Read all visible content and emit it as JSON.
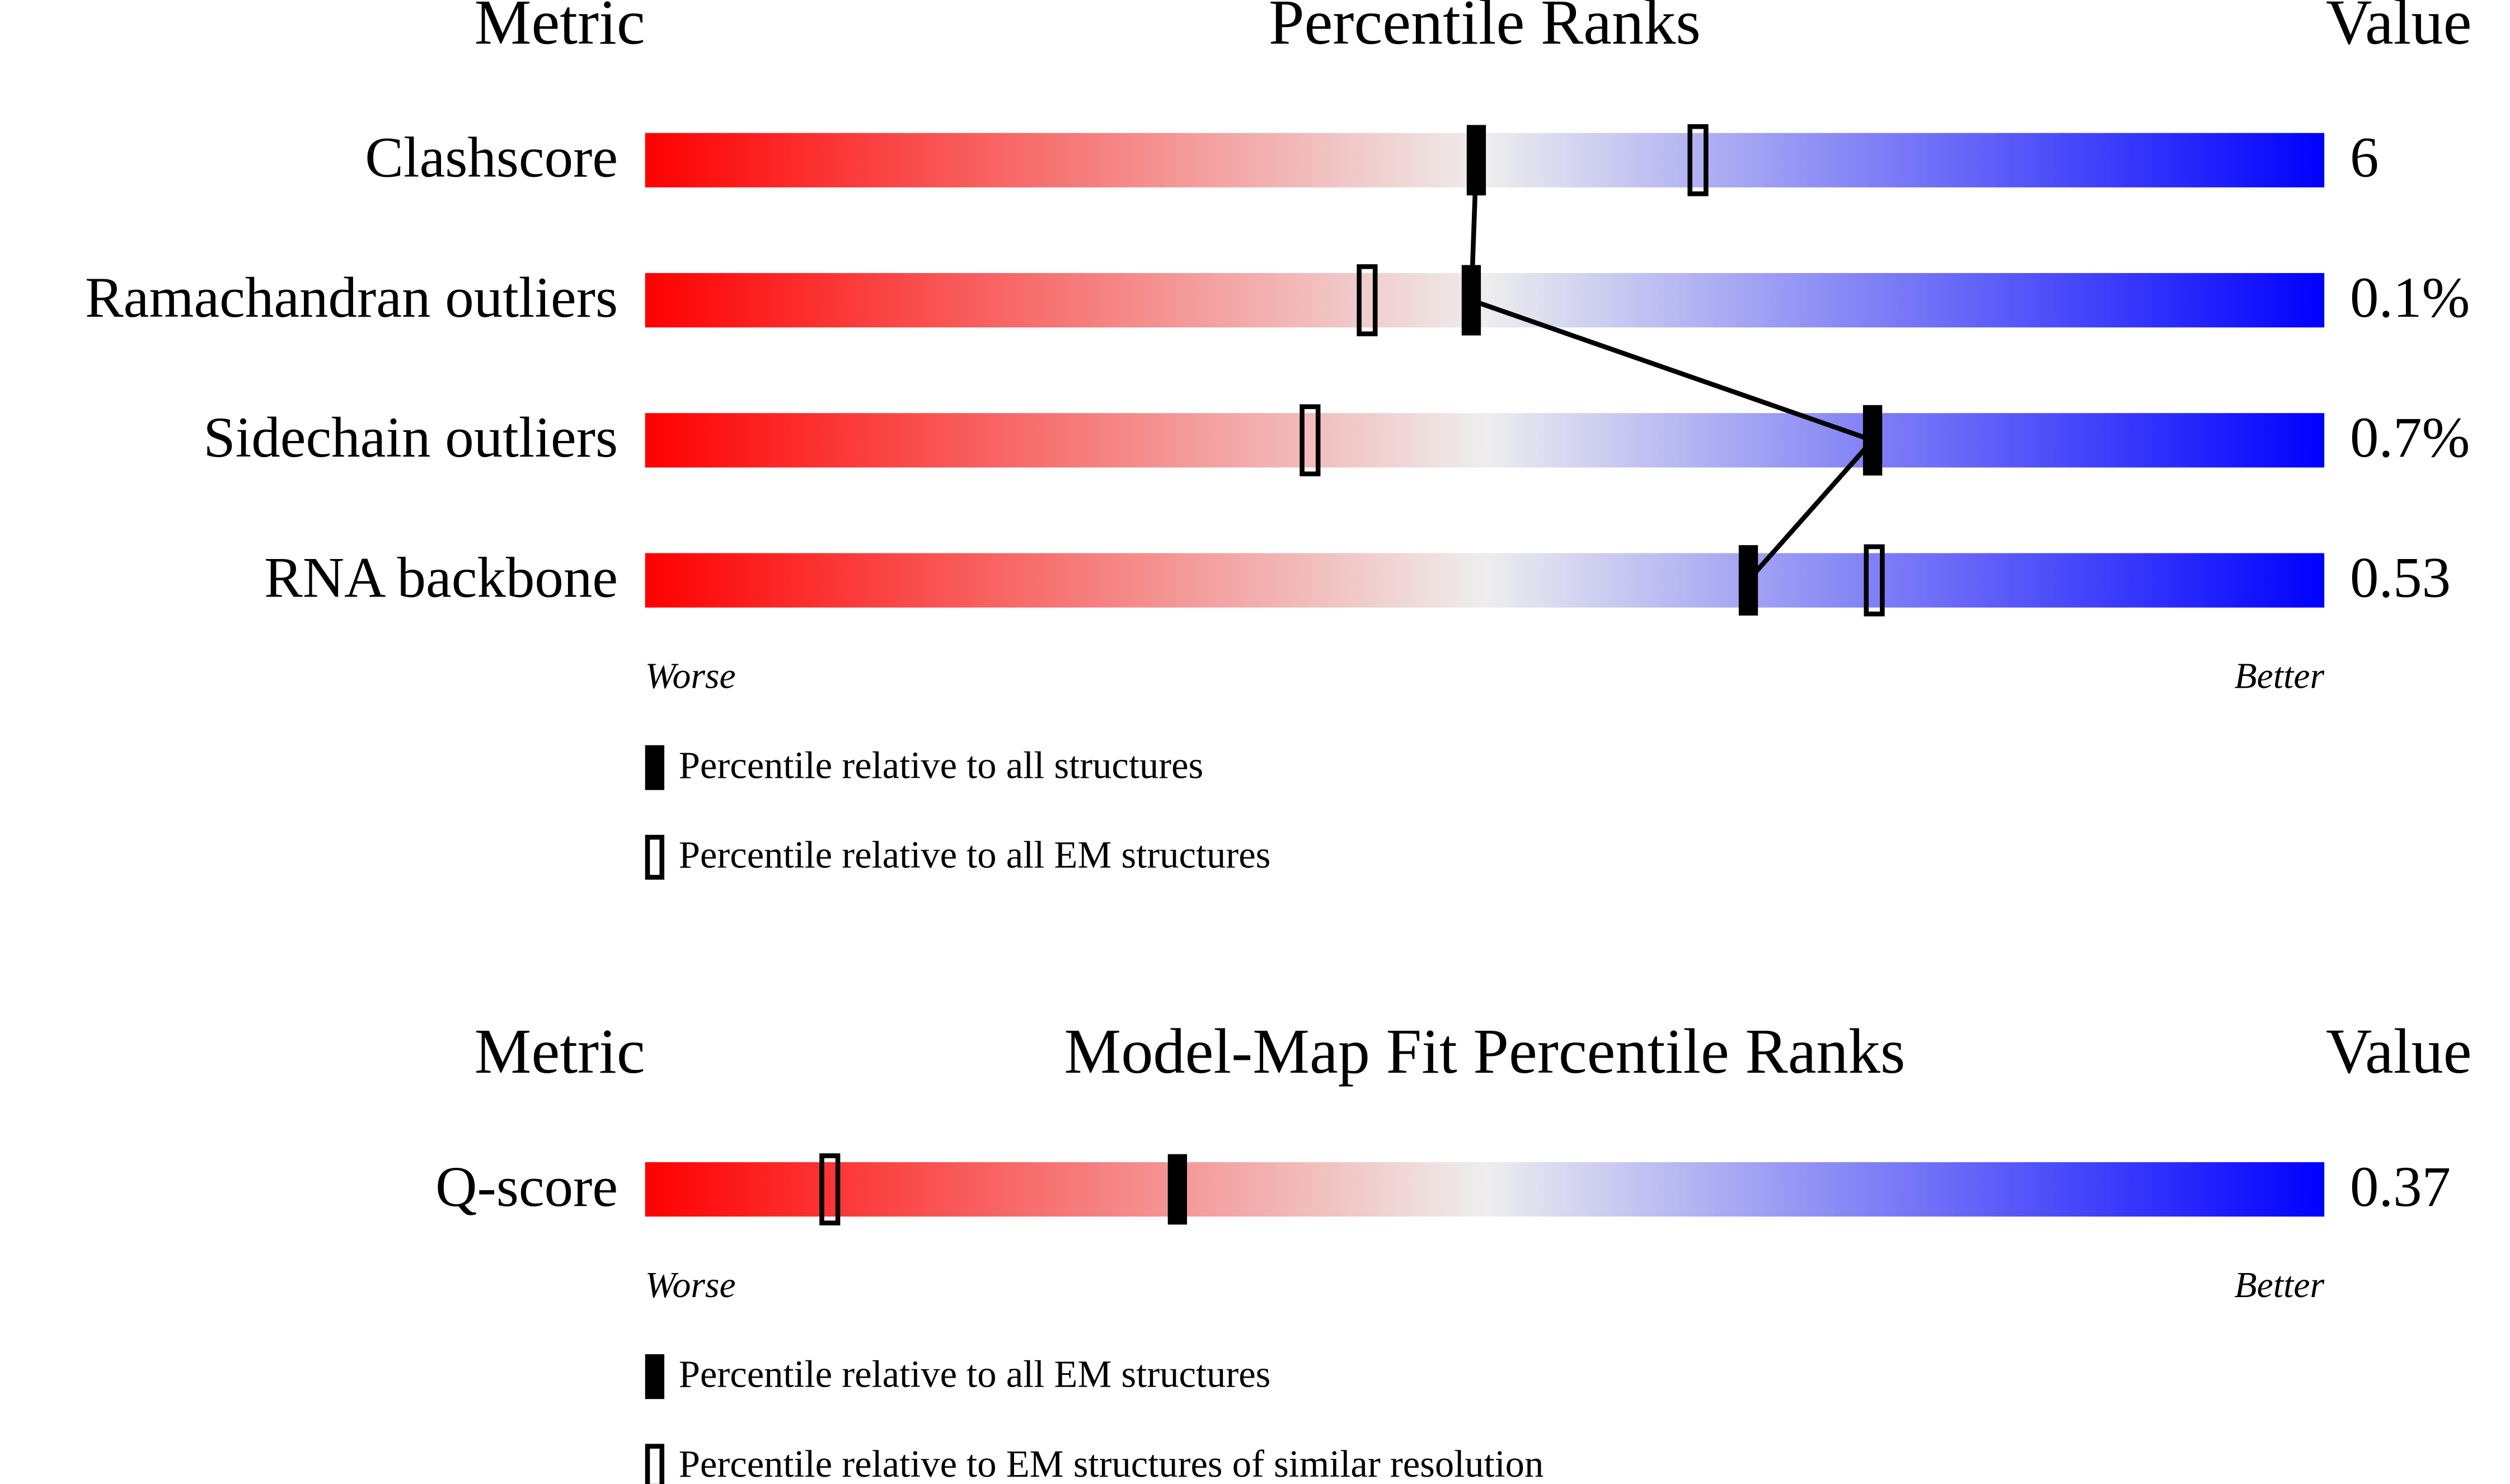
{
  "chart_data": [
    {
      "type": "percentile-slider",
      "metric_header": "Metric",
      "title": "Percentile Ranks",
      "value_header": "Value",
      "categories": [
        "Clashscore",
        "Ramachandran outliers",
        "Sidechain outliers",
        "RNA backbone"
      ],
      "metric_values": [
        "6",
        "0.1%",
        "0.7%",
        "0.53"
      ],
      "xlim": [
        0,
        100
      ],
      "low_label": "Worse",
      "high_label": "Better",
      "colors": [
        "#ff0000",
        "#eeeeee",
        "#0000ff"
      ],
      "series": [
        {
          "name": "Percentile relative to all structures",
          "style": "filled",
          "color": "#000000",
          "connected": true,
          "values": [
            49.5,
            49.2,
            73.1,
            65.7
          ]
        },
        {
          "name": "Percentile relative to all EM structures",
          "style": "open",
          "color": "#000000",
          "values": [
            62.7,
            43,
            39.6,
            73.2
          ]
        }
      ]
    },
    {
      "type": "percentile-slider",
      "metric_header": "Metric",
      "title": "Model-Map Fit Percentile Ranks",
      "value_header": "Value",
      "categories": [
        "Q-score"
      ],
      "metric_values": [
        "0.37"
      ],
      "xlim": [
        0,
        100
      ],
      "low_label": "Worse",
      "high_label": "Better",
      "colors": [
        "#ff0000",
        "#eeeeee",
        "#0000ff"
      ],
      "series": [
        {
          "name": "Percentile relative to all EM structures",
          "style": "filled",
          "color": "#000000",
          "connected": true,
          "values": [
            31.7
          ]
        },
        {
          "name": "Percentile relative to EM structures of similar resolution",
          "style": "open",
          "color": "#000000",
          "values": [
            11
          ]
        }
      ]
    }
  ]
}
